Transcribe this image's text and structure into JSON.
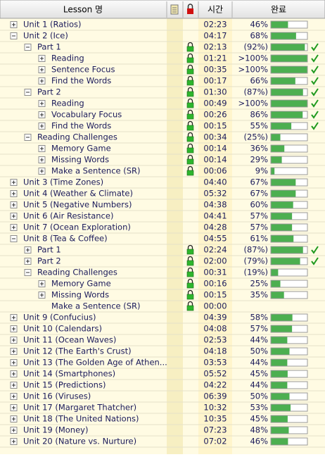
{
  "header": {
    "lesson": "Lesson 명",
    "time": "시간",
    "done": "완료"
  },
  "rows": [
    {
      "level": 0,
      "expander": "+",
      "label": "Unit 1 (Ratios)",
      "time": "02:23",
      "pct": "46%"
    },
    {
      "level": 0,
      "expander": "-",
      "label": "Unit 2 (Ice)",
      "time": "04:17",
      "pct": "68%"
    },
    {
      "level": 1,
      "expander": "-",
      "label": "Part 1",
      "lock": true,
      "time": "02:13",
      "pct": "(92%)",
      "check": true
    },
    {
      "level": 2,
      "expander": "+",
      "label": "Reading",
      "lock": true,
      "time": "01:21",
      "pct": ">100%",
      "check": true
    },
    {
      "level": 2,
      "expander": "+",
      "label": "Sentence Focus",
      "lock": true,
      "time": "00:35",
      "pct": ">100%",
      "check": true
    },
    {
      "level": 2,
      "expander": "+",
      "label": "Find the Words",
      "lock": true,
      "time": "00:17",
      "pct": "66%",
      "check": true
    },
    {
      "level": 1,
      "expander": "-",
      "label": "Part 2",
      "lock": true,
      "time": "01:30",
      "pct": "(87%)",
      "check": true
    },
    {
      "level": 2,
      "expander": "+",
      "label": "Reading",
      "lock": true,
      "time": "00:49",
      "pct": ">100%",
      "check": true
    },
    {
      "level": 2,
      "expander": "+",
      "label": "Vocabulary Focus",
      "lock": true,
      "time": "00:26",
      "pct": "86%",
      "check": true
    },
    {
      "level": 2,
      "expander": "+",
      "label": "Find the Words",
      "lock": true,
      "time": "00:15",
      "pct": "55%",
      "check": true
    },
    {
      "level": 1,
      "expander": "-",
      "label": "Reading Challenges",
      "lock": true,
      "time": "00:34",
      "pct": "(25%)"
    },
    {
      "level": 2,
      "expander": "+",
      "label": "Memory Game",
      "lock": true,
      "time": "00:14",
      "pct": "36%"
    },
    {
      "level": 2,
      "expander": "+",
      "label": "Missing Words",
      "lock": true,
      "time": "00:14",
      "pct": "29%"
    },
    {
      "level": 2,
      "expander": "+",
      "label": "Make a Sentence (SR)",
      "lock": true,
      "time": "00:06",
      "pct": "9%"
    },
    {
      "level": 0,
      "expander": "+",
      "label": "Unit 3 (Time Zones)",
      "time": "04:40",
      "pct": "67%"
    },
    {
      "level": 0,
      "expander": "+",
      "label": "Unit 4 (Weather & Climate)",
      "time": "05:32",
      "pct": "67%"
    },
    {
      "level": 0,
      "expander": "+",
      "label": "Unit 5 (Negative Numbers)",
      "time": "04:38",
      "pct": "60%"
    },
    {
      "level": 0,
      "expander": "+",
      "label": "Unit 6 (Air Resistance)",
      "time": "04:41",
      "pct": "57%"
    },
    {
      "level": 0,
      "expander": "+",
      "label": "Unit 7 (Ocean Exploration)",
      "time": "04:28",
      "pct": "57%"
    },
    {
      "level": 0,
      "expander": "-",
      "label": "Unit 8 (Tea & Coffee)",
      "time": "04:55",
      "pct": "61%"
    },
    {
      "level": 1,
      "expander": "+",
      "label": "Part 1",
      "lock": true,
      "time": "02:24",
      "pct": "(87%)",
      "check": true
    },
    {
      "level": 1,
      "expander": "+",
      "label": "Part 2",
      "lock": true,
      "time": "02:00",
      "pct": "(79%)",
      "check": true
    },
    {
      "level": 1,
      "expander": "-",
      "label": "Reading Challenges",
      "lock": true,
      "time": "00:31",
      "pct": "(19%)"
    },
    {
      "level": 2,
      "expander": "+",
      "label": "Memory Game",
      "lock": true,
      "time": "00:16",
      "pct": "25%"
    },
    {
      "level": 2,
      "expander": "+",
      "label": "Missing Words",
      "lock": true,
      "time": "00:15",
      "pct": "35%"
    },
    {
      "level": 2,
      "label": "Make a Sentence (SR)",
      "lock": true,
      "time": "00:00"
    },
    {
      "level": 0,
      "expander": "+",
      "label": "Unit 9 (Confucius)",
      "time": "04:39",
      "pct": "58%"
    },
    {
      "level": 0,
      "expander": "+",
      "label": "Unit 10 (Calendars)",
      "time": "04:08",
      "pct": "57%"
    },
    {
      "level": 0,
      "expander": "+",
      "label": "Unit 11 (Ocean Waves)",
      "time": "02:53",
      "pct": "44%"
    },
    {
      "level": 0,
      "expander": "+",
      "label": "Unit 12 (The Earth's Crust)",
      "time": "04:18",
      "pct": "50%"
    },
    {
      "level": 0,
      "expander": "+",
      "label": "Unit 13 (The Golden Age of Athen...",
      "time": "03:53",
      "pct": "44%"
    },
    {
      "level": 0,
      "expander": "+",
      "label": "Unit 14 (Smartphones)",
      "time": "05:52",
      "pct": "45%"
    },
    {
      "level": 0,
      "expander": "+",
      "label": "Unit 15 (Predictions)",
      "time": "04:22",
      "pct": "44%"
    },
    {
      "level": 0,
      "expander": "+",
      "label": "Unit 16 (Viruses)",
      "time": "06:39",
      "pct": "50%"
    },
    {
      "level": 0,
      "expander": "+",
      "label": "Unit 17 (Margaret Thatcher)",
      "time": "10:32",
      "pct": "53%"
    },
    {
      "level": 0,
      "expander": "+",
      "label": "Unit 18 (The United Nations)",
      "time": "10:35",
      "pct": "45%"
    },
    {
      "level": 0,
      "expander": "+",
      "label": "Unit 19 (Money)",
      "time": "07:23",
      "pct": "48%"
    },
    {
      "level": 0,
      "expander": "+",
      "label": "Unit 20 (Nature vs. Nurture)",
      "time": "07:02",
      "pct": "46%"
    }
  ]
}
